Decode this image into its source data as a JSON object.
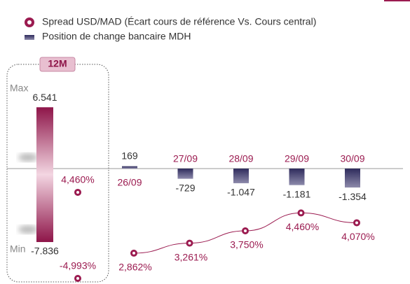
{
  "chart_data": {
    "type": "bar",
    "categories": [
      "26/09",
      "27/09",
      "28/09",
      "29/09",
      "30/09"
    ],
    "series": [
      {
        "name": "Position de change bancaire MDH",
        "color": "#3b3868",
        "values": [
          169,
          -729,
          -1047,
          -1181,
          -1354
        ],
        "value_labels": [
          "169",
          "-729",
          "-1.047",
          "-1.181",
          "-1.354"
        ]
      },
      {
        "name": "Spread  USD/MAD (Écart cours de référence Vs. Cours central)",
        "color": "#9b1b50",
        "axis": "y2",
        "values": [
          2.862,
          3.261,
          3.75,
          4.46,
          4.07
        ],
        "value_labels": [
          "2,862%",
          "3,261%",
          "3,750%",
          "4,460%",
          "4,070%"
        ]
      }
    ],
    "ylim": [
      -6950,
      7050
    ],
    "y2lim": [
      2.36,
      10.14
    ],
    "range": {
      "label": "12M",
      "max_label": "Max",
      "min_label": "Min",
      "position": {
        "values": [
          6541,
          -7836
        ],
        "value_labels": [
          "6.541",
          "-7.836"
        ],
        "ylim": [
          -10370,
          10520
        ]
      },
      "spread": {
        "values": [
          4.46,
          -4.993
        ],
        "value_labels": [
          "4,460%",
          "-4,993%"
        ],
        "ylim": [
          -3.61,
          17.9
        ]
      }
    }
  }
}
